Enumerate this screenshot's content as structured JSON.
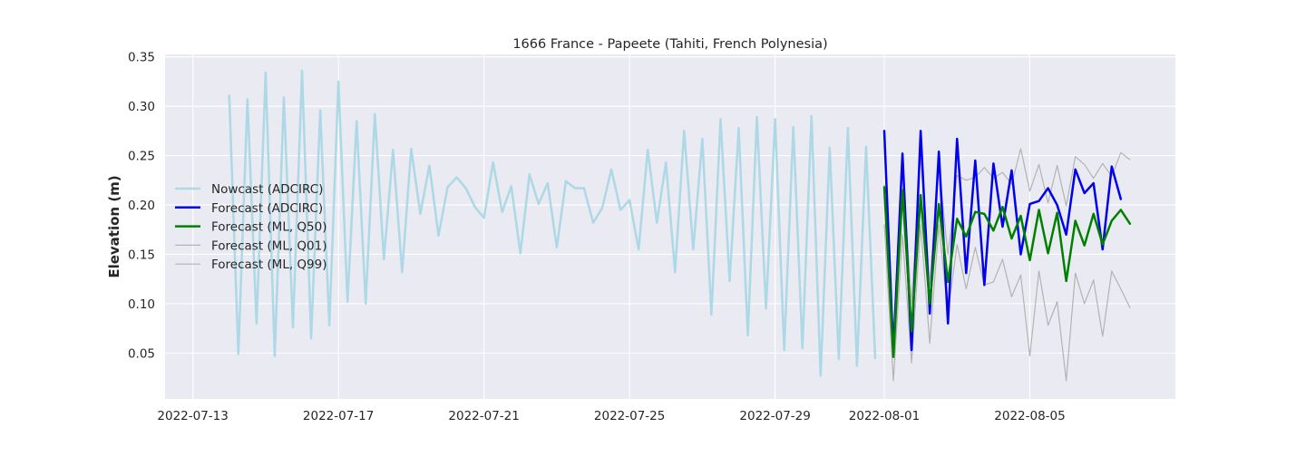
{
  "chart_data": {
    "type": "line",
    "title": "1666 France - Papeete (Tahiti, French Polynesia)",
    "xlabel": "",
    "ylabel": "Elevation (m)",
    "x_type": "date",
    "xlim": [
      "2022-07-12T05:40",
      "2022-08-09T00:00"
    ],
    "ylim": [
      0.0035,
      0.3525
    ],
    "x_ticks": [
      "2022-07-13",
      "2022-07-17",
      "2022-07-21",
      "2022-07-25",
      "2022-07-29",
      "2022-08-01",
      "2022-08-05"
    ],
    "y_ticks": [
      0.05,
      0.1,
      0.15,
      0.2,
      0.25,
      0.3,
      0.35
    ],
    "y_tick_labels": [
      "0.05",
      "0.10",
      "0.15",
      "0.20",
      "0.25",
      "0.30",
      "0.35"
    ],
    "grid": true,
    "legend_position": "center-left",
    "series": [
      {
        "name": "Nowcast (ADCIRC)",
        "color": "#add8e6",
        "linewidth": 2.5,
        "x": [
          "2022-07-14T00:00",
          "2022-07-14T06:00",
          "2022-07-14T12:00",
          "2022-07-14T18:00",
          "2022-07-15T00:00",
          "2022-07-15T06:00",
          "2022-07-15T12:00",
          "2022-07-15T18:00",
          "2022-07-16T00:00",
          "2022-07-16T06:00",
          "2022-07-16T12:00",
          "2022-07-16T18:00",
          "2022-07-17T00:00",
          "2022-07-17T06:00",
          "2022-07-17T12:00",
          "2022-07-17T18:00",
          "2022-07-18T00:00",
          "2022-07-18T06:00",
          "2022-07-18T12:00",
          "2022-07-18T18:00",
          "2022-07-19T00:00",
          "2022-07-19T06:00",
          "2022-07-19T12:00",
          "2022-07-19T18:00",
          "2022-07-20T00:00",
          "2022-07-20T06:00",
          "2022-07-20T12:00",
          "2022-07-20T18:00",
          "2022-07-21T00:00",
          "2022-07-21T06:00",
          "2022-07-21T12:00",
          "2022-07-21T18:00",
          "2022-07-22T00:00",
          "2022-07-22T06:00",
          "2022-07-22T12:00",
          "2022-07-22T18:00",
          "2022-07-23T00:00",
          "2022-07-23T06:00",
          "2022-07-23T12:00",
          "2022-07-23T18:00",
          "2022-07-24T00:00",
          "2022-07-24T06:00",
          "2022-07-24T12:00",
          "2022-07-24T18:00",
          "2022-07-25T00:00",
          "2022-07-25T06:00",
          "2022-07-25T12:00",
          "2022-07-25T18:00",
          "2022-07-26T00:00",
          "2022-07-26T06:00",
          "2022-07-26T12:00",
          "2022-07-26T18:00",
          "2022-07-27T00:00",
          "2022-07-27T06:00",
          "2022-07-27T12:00",
          "2022-07-27T18:00",
          "2022-07-28T00:00",
          "2022-07-28T06:00",
          "2022-07-28T12:00",
          "2022-07-28T18:00",
          "2022-07-29T00:00",
          "2022-07-29T06:00",
          "2022-07-29T12:00",
          "2022-07-29T18:00",
          "2022-07-30T00:00",
          "2022-07-30T06:00",
          "2022-07-30T12:00",
          "2022-07-30T18:00",
          "2022-07-31T00:00",
          "2022-07-31T06:00",
          "2022-07-31T12:00",
          "2022-07-31T18:00"
        ],
        "y": [
          0.311,
          0.049,
          0.307,
          0.08,
          0.334,
          0.047,
          0.309,
          0.076,
          0.336,
          0.065,
          0.296,
          0.078,
          0.325,
          0.102,
          0.285,
          0.1,
          0.292,
          0.145,
          0.256,
          0.132,
          0.257,
          0.191,
          0.24,
          0.169,
          0.218,
          0.228,
          0.217,
          0.198,
          0.187,
          0.243,
          0.193,
          0.219,
          0.151,
          0.231,
          0.201,
          0.222,
          0.157,
          0.224,
          0.217,
          0.217,
          0.182,
          0.197,
          0.236,
          0.195,
          0.205,
          0.155,
          0.256,
          0.182,
          0.243,
          0.132,
          0.275,
          0.155,
          0.267,
          0.089,
          0.287,
          0.123,
          0.278,
          0.068,
          0.289,
          0.095,
          0.287,
          0.053,
          0.279,
          0.055,
          0.29,
          0.027,
          0.258,
          0.044,
          0.278,
          0.037,
          0.259,
          0.045
        ]
      },
      {
        "name": "Forecast (ADCIRC)",
        "color": "#0000ee",
        "linewidth": 2.5,
        "x": [
          "2022-08-01T00:00",
          "2022-08-01T06:00",
          "2022-08-01T12:00",
          "2022-08-01T18:00",
          "2022-08-02T00:00",
          "2022-08-02T06:00",
          "2022-08-02T12:00",
          "2022-08-02T18:00",
          "2022-08-03T00:00",
          "2022-08-03T06:00",
          "2022-08-03T12:00",
          "2022-08-03T18:00",
          "2022-08-04T00:00",
          "2022-08-04T06:00",
          "2022-08-04T12:00",
          "2022-08-04T18:00",
          "2022-08-05T00:00",
          "2022-08-05T06:00",
          "2022-08-05T12:00",
          "2022-08-05T18:00",
          "2022-08-06T00:00",
          "2022-08-06T06:00",
          "2022-08-06T12:00",
          "2022-08-06T18:00",
          "2022-08-07T00:00",
          "2022-08-07T06:00",
          "2022-08-07T12:00"
        ],
        "y": [
          0.275,
          0.05,
          0.252,
          0.053,
          0.275,
          0.09,
          0.254,
          0.08,
          0.267,
          0.131,
          0.245,
          0.119,
          0.242,
          0.178,
          0.235,
          0.15,
          0.201,
          0.204,
          0.217,
          0.2,
          0.17,
          0.236,
          0.212,
          0.222,
          0.155,
          0.239,
          0.206
        ]
      },
      {
        "name": "Forecast (ML, Q50)",
        "color": "#008000",
        "linewidth": 2.5,
        "x": [
          "2022-08-01T00:00",
          "2022-08-01T06:00",
          "2022-08-01T12:00",
          "2022-08-01T18:00",
          "2022-08-02T00:00",
          "2022-08-02T06:00",
          "2022-08-02T12:00",
          "2022-08-02T18:00",
          "2022-08-03T00:00",
          "2022-08-03T06:00",
          "2022-08-03T12:00",
          "2022-08-03T18:00",
          "2022-08-04T00:00",
          "2022-08-04T06:00",
          "2022-08-04T12:00",
          "2022-08-04T18:00",
          "2022-08-05T00:00",
          "2022-08-05T06:00",
          "2022-08-05T12:00",
          "2022-08-05T18:00",
          "2022-08-06T00:00",
          "2022-08-06T06:00",
          "2022-08-06T12:00",
          "2022-08-06T18:00",
          "2022-08-07T00:00",
          "2022-08-07T06:00",
          "2022-08-07T12:00",
          "2022-08-07T18:00"
        ],
        "y": [
          0.218,
          0.046,
          0.215,
          0.072,
          0.21,
          0.1,
          0.201,
          0.122,
          0.186,
          0.168,
          0.193,
          0.191,
          0.174,
          0.198,
          0.166,
          0.189,
          0.144,
          0.195,
          0.151,
          0.192,
          0.123,
          0.184,
          0.159,
          0.191,
          0.16,
          0.184,
          0.195,
          0.181
        ]
      },
      {
        "name": "Forecast (ML, Q01)",
        "color": "#b3b3b3",
        "linewidth": 1.2,
        "x": [
          "2022-08-01T00:00",
          "2022-08-01T06:00",
          "2022-08-01T12:00",
          "2022-08-01T18:00",
          "2022-08-02T00:00",
          "2022-08-02T06:00",
          "2022-08-02T12:00",
          "2022-08-02T18:00",
          "2022-08-03T00:00",
          "2022-08-03T06:00",
          "2022-08-03T12:00",
          "2022-08-03T18:00",
          "2022-08-04T00:00",
          "2022-08-04T06:00",
          "2022-08-04T12:00",
          "2022-08-04T18:00",
          "2022-08-05T00:00",
          "2022-08-05T06:00",
          "2022-08-05T12:00",
          "2022-08-05T18:00",
          "2022-08-06T00:00",
          "2022-08-06T06:00",
          "2022-08-06T12:00",
          "2022-08-06T18:00",
          "2022-08-07T00:00",
          "2022-08-07T06:00",
          "2022-08-07T12:00",
          "2022-08-07T18:00"
        ],
        "y": [
          0.18,
          0.022,
          0.17,
          0.04,
          0.18,
          0.06,
          0.18,
          0.09,
          0.16,
          0.115,
          0.157,
          0.119,
          0.122,
          0.145,
          0.107,
          0.129,
          0.047,
          0.133,
          0.078,
          0.102,
          0.022,
          0.131,
          0.1,
          0.124,
          0.067,
          0.133,
          0.115,
          0.096
        ]
      },
      {
        "name": "Forecast (ML, Q99)",
        "color": "#b3b3b3",
        "linewidth": 1.2,
        "x": [
          "2022-08-01T00:00",
          "2022-08-01T06:00",
          "2022-08-01T12:00",
          "2022-08-01T18:00",
          "2022-08-02T00:00",
          "2022-08-02T06:00",
          "2022-08-02T12:00",
          "2022-08-02T18:00",
          "2022-08-03T00:00",
          "2022-08-03T06:00",
          "2022-08-03T12:00",
          "2022-08-03T18:00",
          "2022-08-04T00:00",
          "2022-08-04T06:00",
          "2022-08-04T12:00",
          "2022-08-04T18:00",
          "2022-08-05T00:00",
          "2022-08-05T06:00",
          "2022-08-05T12:00",
          "2022-08-05T18:00",
          "2022-08-06T00:00",
          "2022-08-06T06:00",
          "2022-08-06T12:00",
          "2022-08-06T18:00",
          "2022-08-07T00:00",
          "2022-08-07T06:00",
          "2022-08-07T12:00",
          "2022-08-07T18:00"
        ],
        "y": [
          0.22,
          0.07,
          0.24,
          0.1,
          0.25,
          0.12,
          0.24,
          0.15,
          0.23,
          0.225,
          0.228,
          0.238,
          0.227,
          0.233,
          0.221,
          0.257,
          0.214,
          0.241,
          0.202,
          0.24,
          0.199,
          0.249,
          0.241,
          0.227,
          0.242,
          0.229,
          0.253,
          0.246
        ]
      }
    ]
  }
}
